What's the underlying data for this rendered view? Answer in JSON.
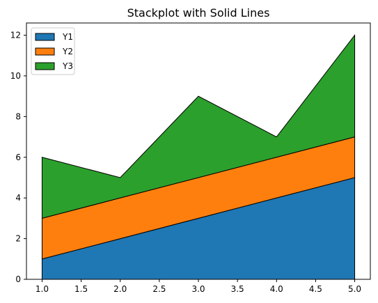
{
  "chart_data": {
    "type": "area",
    "title": "Stackplot with Solid Lines",
    "xlabel": "",
    "ylabel": "",
    "x": [
      1,
      2,
      3,
      4,
      5
    ],
    "series": [
      {
        "name": "Y1",
        "values": [
          1,
          2,
          3,
          4,
          5
        ],
        "color": "#1f77b4"
      },
      {
        "name": "Y2",
        "values": [
          2,
          2,
          2,
          2,
          2
        ],
        "color": "#ff7f0e"
      },
      {
        "name": "Y3",
        "values": [
          3,
          1,
          4,
          1,
          5
        ],
        "color": "#2ca02c"
      }
    ],
    "stacked": true,
    "edge_color": "#000000",
    "xlim": [
      0.8,
      5.2
    ],
    "ylim": [
      0,
      12.6
    ],
    "x_ticks": [
      "1.0",
      "1.5",
      "2.0",
      "2.5",
      "3.0",
      "3.5",
      "4.0",
      "4.5",
      "5.0"
    ],
    "y_ticks": [
      "0",
      "2",
      "4",
      "6",
      "8",
      "10",
      "12"
    ],
    "grid": false,
    "legend_position": "top-left"
  }
}
